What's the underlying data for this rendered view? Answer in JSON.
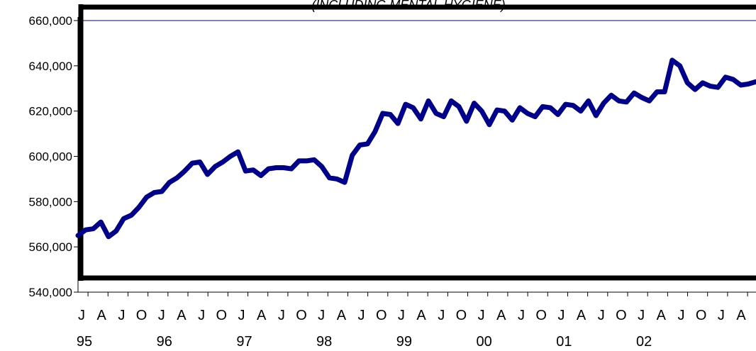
{
  "chart_data": {
    "type": "line",
    "subtitle": "(INCLUDING MENTAL HYGIENE)",
    "ylim": [
      540000,
      660000
    ],
    "y_ticks": [
      "540,000",
      "560,000",
      "580,000",
      "600,000",
      "620,000",
      "640,000",
      "660,000"
    ],
    "y_tick_values": [
      540000,
      560000,
      580000,
      600000,
      620000,
      640000,
      660000
    ],
    "x_month_labels": [
      "J",
      "A",
      "J",
      "O",
      "J",
      "A",
      "J",
      "O",
      "J",
      "A",
      "J",
      "O",
      "J",
      "A",
      "J",
      "O",
      "J",
      "A",
      "J",
      "O",
      "J",
      "A",
      "J",
      "O",
      "J",
      "A",
      "J",
      "O",
      "J",
      "A",
      "J",
      "O",
      "J",
      "A"
    ],
    "x_year_labels": [
      "95",
      "96",
      "97",
      "98",
      "99",
      "00",
      "01",
      "02"
    ],
    "grid": false,
    "legend": "none",
    "line_color": "#00008B",
    "reference_line": {
      "value": 660000,
      "color": "#000080"
    },
    "series": [
      {
        "values": [
          565000,
          567500,
          568000,
          571000,
          564500,
          567000,
          572500,
          574000,
          577500,
          582000,
          584000,
          584500,
          588500,
          590500,
          593500,
          597000,
          597500,
          592000,
          595500,
          597500,
          600000,
          602000,
          593500,
          594000,
          591500,
          594500,
          595000,
          595000,
          594500,
          598000,
          598000,
          598500,
          595500,
          590500,
          590000,
          588500,
          600500,
          605000,
          605500,
          611000,
          619000,
          618500,
          614500,
          623000,
          621500,
          616500,
          624500,
          619000,
          617500,
          624500,
          622000,
          615500,
          623500,
          620000,
          614000,
          620500,
          620000,
          616000,
          621500,
          619000,
          617500,
          622000,
          621500,
          618500,
          623000,
          622500,
          620000,
          624500,
          618000,
          623500,
          627000,
          624500,
          624000,
          628000,
          626000,
          624500,
          628500,
          628500,
          642500,
          640000,
          632500,
          629500,
          632500,
          631000,
          630500,
          635000,
          634000,
          631500,
          632000,
          633000
        ]
      }
    ]
  }
}
